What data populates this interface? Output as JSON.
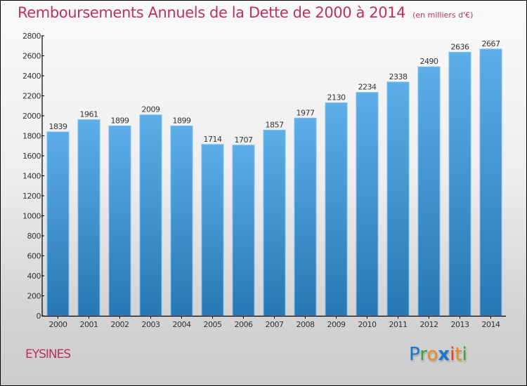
{
  "header": {
    "title": "Remboursements Annuels de la Dette de 2000 à 2014",
    "unit": "(en milliers d'€)"
  },
  "footer": {
    "city": "EYSINES",
    "logo": {
      "letters": [
        "P",
        "r",
        "o",
        "x",
        "i",
        "t",
        "i"
      ],
      "colors": [
        "#1a78d0",
        "#3aa53a",
        "#f08a1c",
        "#1a78d0",
        "#e8401c",
        "#f08a1c",
        "#3aa53a"
      ]
    }
  },
  "colors": {
    "title": "#c0305c",
    "bar_top": "#5daee8",
    "bar_bottom": "#2677b3"
  },
  "chart_data": {
    "type": "bar",
    "title": "Remboursements Annuels de la Dette de 2000 à 2014",
    "subtitle": "(en milliers d'€)",
    "xlabel": "",
    "ylabel": "",
    "categories": [
      "2000",
      "2001",
      "2002",
      "2003",
      "2004",
      "2005",
      "2006",
      "2007",
      "2008",
      "2009",
      "2010",
      "2011",
      "2012",
      "2013",
      "2014"
    ],
    "values": [
      1839,
      1961,
      1899,
      2009,
      1899,
      1714,
      1707,
      1857,
      1977,
      2130,
      2234,
      2338,
      2490,
      2636,
      2667
    ],
    "ylim": [
      0,
      2800
    ],
    "yticks": [
      0,
      200,
      400,
      600,
      800,
      1000,
      1200,
      1400,
      1600,
      1800,
      2000,
      2200,
      2400,
      2600,
      2800
    ],
    "grid": false,
    "legend": "none",
    "data_labels": true
  }
}
